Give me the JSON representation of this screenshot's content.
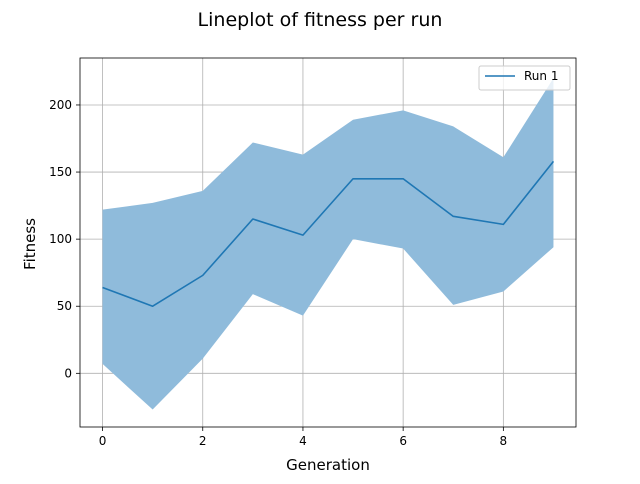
{
  "chart_data": {
    "type": "line",
    "title": "Lineplot of fitness per run",
    "xlabel": "Generation",
    "ylabel": "Fitness",
    "xlim": [
      -0.45,
      9.45
    ],
    "ylim": [
      -40,
      235
    ],
    "x_ticks": [
      0,
      2,
      4,
      6,
      8
    ],
    "y_ticks": [
      0,
      50,
      100,
      150,
      200
    ],
    "x_tick_labels": [
      "0",
      "2",
      "4",
      "6",
      "8"
    ],
    "y_tick_labels": [
      "0",
      "50",
      "100",
      "150",
      "200"
    ],
    "grid": true,
    "legend_position": "top-right",
    "x": [
      0,
      1,
      2,
      3,
      4,
      5,
      6,
      7,
      8,
      9
    ],
    "series": [
      {
        "name": "Run 1",
        "color": "#1f77b4",
        "values": [
          64,
          50,
          73,
          115,
          103,
          145,
          145,
          117,
          111,
          158
        ],
        "band_upper": [
          122,
          127,
          136,
          172,
          163,
          189,
          196,
          184,
          161,
          220
        ],
        "band_lower": [
          7,
          -27,
          11,
          59,
          43,
          100,
          93,
          51,
          61,
          94
        ],
        "band_color": "#8fbbdb"
      }
    ]
  }
}
